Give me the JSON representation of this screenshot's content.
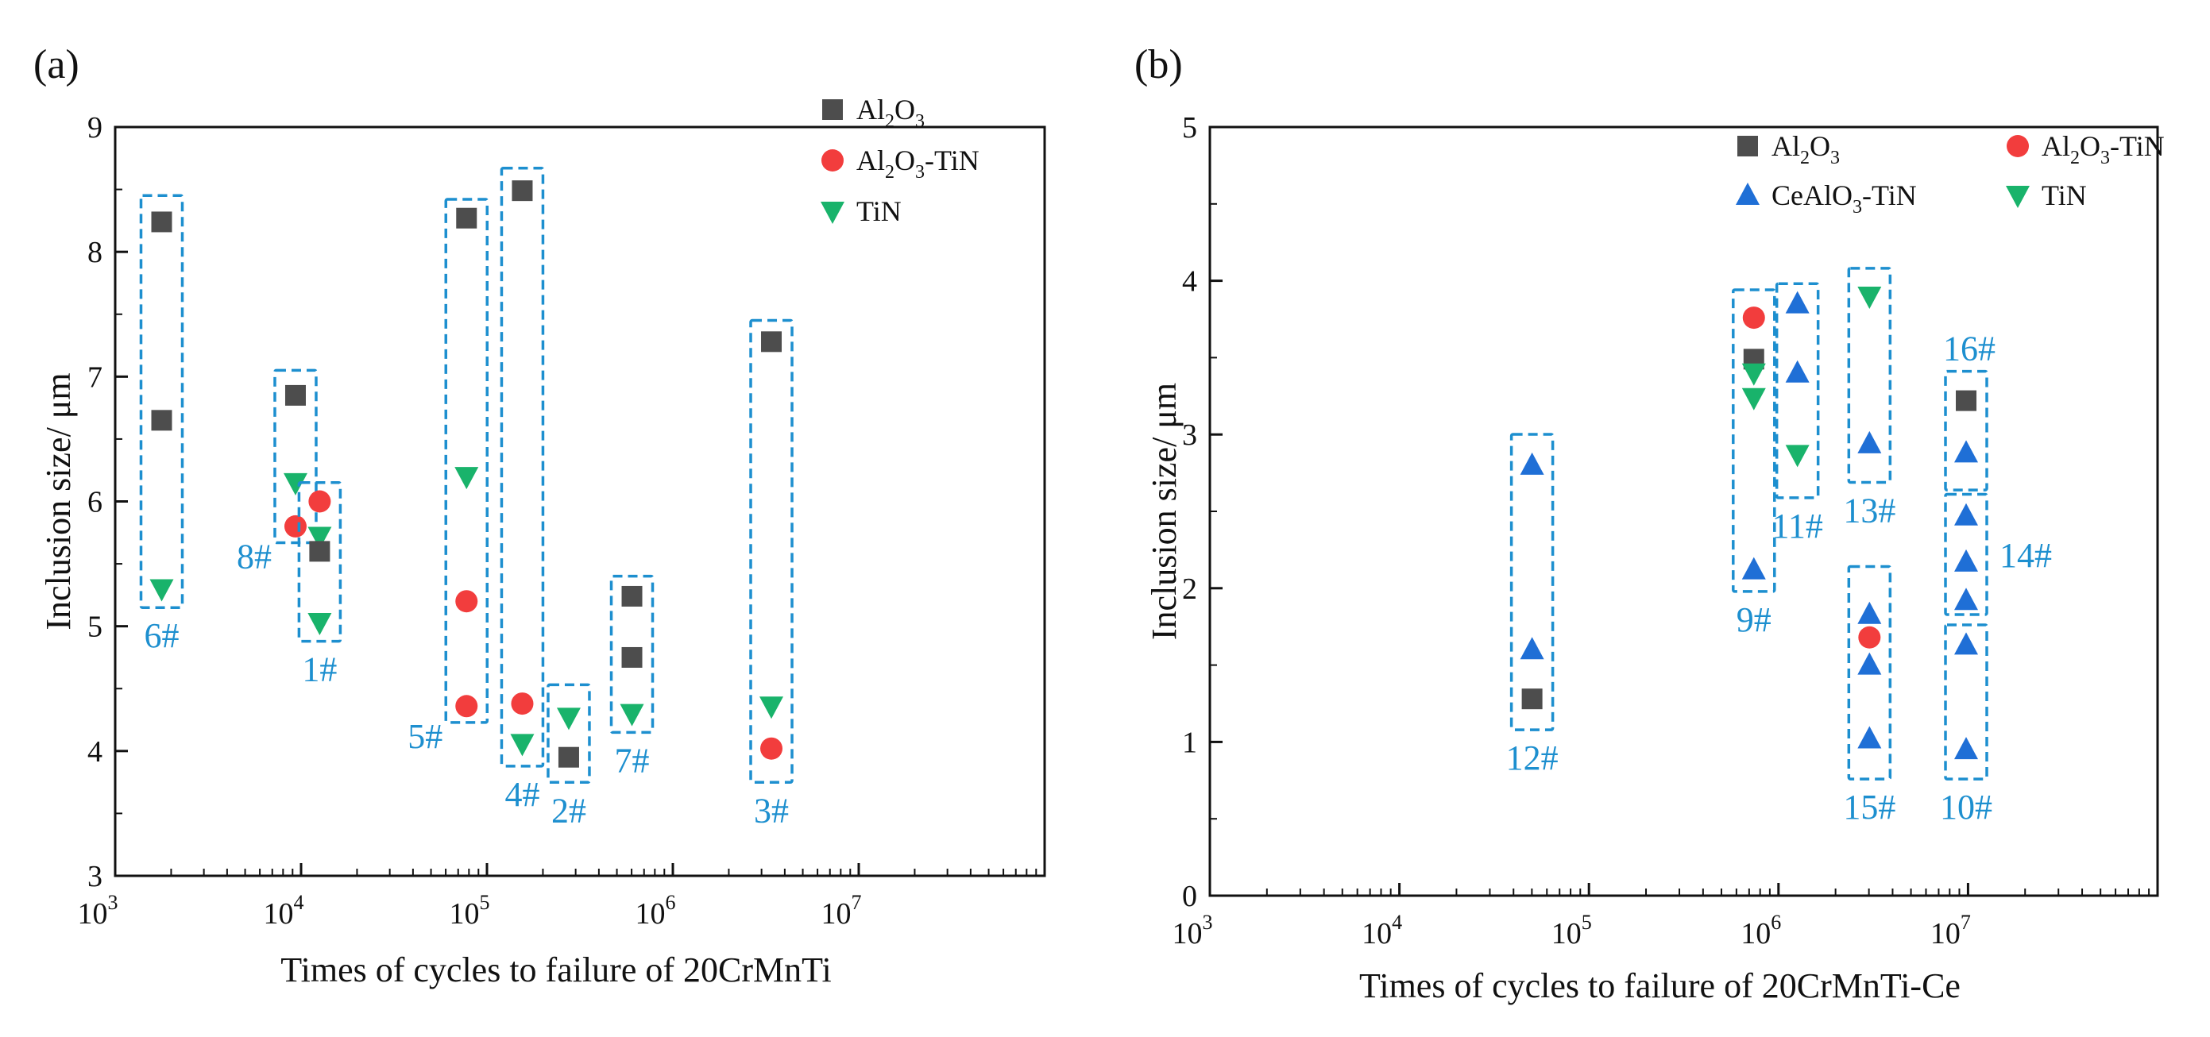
{
  "chart_data": [
    {
      "type": "scatter",
      "panel": "(a)",
      "xlabel": "Times of cycles to failure of 20CrMnTi",
      "ylabel": "Inclusion size/ μm",
      "xscale": "log",
      "xlim_exp": [
        3,
        8
      ],
      "xticks": [
        {
          "base": "10",
          "exp": "3"
        },
        {
          "base": "10",
          "exp": "4"
        },
        {
          "base": "10",
          "exp": "5"
        },
        {
          "base": "10",
          "exp": "6"
        },
        {
          "base": "10",
          "exp": "7"
        }
      ],
      "ylim": [
        3,
        9
      ],
      "yticks": [
        "3",
        "4",
        "5",
        "6",
        "7",
        "8",
        "9"
      ],
      "legend_position": "top-right",
      "legend": [
        {
          "key": "Al2O3",
          "base": "Al",
          "sub1": "2",
          "mid": "O",
          "sub2": "3",
          "tail": "",
          "marker": "square",
          "color": "#4d4d4d"
        },
        {
          "key": "Al2O3-TiN",
          "base": "Al",
          "sub1": "2",
          "mid": "O",
          "sub2": "3",
          "tail": "-TiN",
          "marker": "circle",
          "color": "#f23d3d"
        },
        {
          "key": "TiN",
          "base": "TiN",
          "sub1": "",
          "mid": "",
          "sub2": "",
          "tail": "",
          "marker": "triangle-down",
          "color": "#19b36b"
        }
      ],
      "groups": [
        {
          "label": "6#",
          "log_x": 3.25,
          "y_range": [
            5.2,
            8.4
          ],
          "label_pos": "below",
          "points": [
            {
              "series": "Al2O3",
              "y": 8.24
            },
            {
              "series": "Al2O3",
              "y": 6.65
            },
            {
              "series": "TiN",
              "y": 5.3
            }
          ]
        },
        {
          "label": "8#",
          "log_x": 3.97,
          "y_range": [
            5.72,
            7.0
          ],
          "label_pos": "below-left",
          "points": [
            {
              "series": "Al2O3",
              "y": 6.85
            },
            {
              "series": "TiN",
              "y": 6.15
            },
            {
              "series": "Al2O3-TiN",
              "y": 5.8
            }
          ]
        },
        {
          "label": "1#",
          "log_x": 4.1,
          "y_range": [
            4.93,
            6.1
          ],
          "label_pos": "below",
          "points": [
            {
              "series": "Al2O3-TiN",
              "y": 6.0
            },
            {
              "series": "TiN",
              "y": 5.72
            },
            {
              "series": "Al2O3",
              "y": 5.6
            },
            {
              "series": "TiN",
              "y": 5.03
            }
          ]
        },
        {
          "label": "5#",
          "log_x": 4.89,
          "y_range": [
            4.28,
            8.37
          ],
          "label_pos": "below-left",
          "points": [
            {
              "series": "Al2O3",
              "y": 8.27
            },
            {
              "series": "TiN",
              "y": 6.2
            },
            {
              "series": "Al2O3-TiN",
              "y": 5.2
            },
            {
              "series": "Al2O3-TiN",
              "y": 4.36
            }
          ]
        },
        {
          "label": "4#",
          "log_x": 5.19,
          "y_range": [
            3.93,
            8.62
          ],
          "label_pos": "below",
          "points": [
            {
              "series": "Al2O3",
              "y": 8.49
            },
            {
              "series": "Al2O3-TiN",
              "y": 4.38
            },
            {
              "series": "TiN",
              "y": 4.06
            }
          ]
        },
        {
          "label": "2#",
          "log_x": 5.44,
          "y_range": [
            3.8,
            4.48
          ],
          "label_pos": "below",
          "points": [
            {
              "series": "TiN",
              "y": 4.27
            },
            {
              "series": "Al2O3",
              "y": 3.95
            }
          ]
        },
        {
          "label": "7#",
          "log_x": 5.78,
          "y_range": [
            4.2,
            5.35
          ],
          "label_pos": "below",
          "points": [
            {
              "series": "Al2O3",
              "y": 5.24
            },
            {
              "series": "Al2O3",
              "y": 4.75
            },
            {
              "series": "TiN",
              "y": 4.3
            }
          ]
        },
        {
          "label": "3#",
          "log_x": 6.53,
          "y_range": [
            3.8,
            7.4
          ],
          "label_pos": "below",
          "points": [
            {
              "series": "Al2O3",
              "y": 7.28
            },
            {
              "series": "TiN",
              "y": 4.36
            },
            {
              "series": "Al2O3-TiN",
              "y": 4.02
            }
          ]
        }
      ]
    },
    {
      "type": "scatter",
      "panel": "(b)",
      "xlabel": "Times of cycles to failure of 20CrMnTi-Ce",
      "ylabel": "Inclusion size/ μm",
      "xscale": "log",
      "xlim_exp": [
        3,
        8
      ],
      "xticks": [
        {
          "base": "10",
          "exp": "3"
        },
        {
          "base": "10",
          "exp": "4"
        },
        {
          "base": "10",
          "exp": "5"
        },
        {
          "base": "10",
          "exp": "6"
        },
        {
          "base": "10",
          "exp": "7"
        }
      ],
      "ylim": [
        0,
        5
      ],
      "yticks": [
        "0",
        "1",
        "2",
        "3",
        "4",
        "5"
      ],
      "legend_position": "top-right",
      "legend": [
        {
          "key": "Al2O3",
          "base": "Al",
          "sub1": "2",
          "mid": "O",
          "sub2": "3",
          "tail": "",
          "marker": "square",
          "color": "#4d4d4d"
        },
        {
          "key": "Al2O3-TiN",
          "base": "Al",
          "sub1": "2",
          "mid": "O",
          "sub2": "3",
          "tail": "-TiN",
          "marker": "circle",
          "color": "#f23d3d"
        },
        {
          "key": "CeAlO3-TiN",
          "base": "CeAlO",
          "sub1": "",
          "mid": "",
          "sub2": "3",
          "tail": "-TiN",
          "marker": "triangle-up",
          "color": "#1f6fd6"
        },
        {
          "key": "TiN",
          "base": "TiN",
          "sub1": "",
          "mid": "",
          "sub2": "",
          "tail": "",
          "marker": "triangle-down",
          "color": "#19b36b"
        }
      ],
      "groups": [
        {
          "label": "12#",
          "log_x": 4.7,
          "y_range": [
            1.12,
            2.96
          ],
          "label_pos": "below",
          "points": [
            {
              "series": "CeAlO3-TiN",
              "y": 2.8
            },
            {
              "series": "CeAlO3-TiN",
              "y": 1.6
            },
            {
              "series": "Al2O3",
              "y": 1.28
            }
          ]
        },
        {
          "label": "9#",
          "log_x": 5.87,
          "y_range": [
            2.02,
            3.9
          ],
          "label_pos": "below",
          "points": [
            {
              "series": "Al2O3-TiN",
              "y": 3.76
            },
            {
              "series": "Al2O3",
              "y": 3.49
            },
            {
              "series": "TiN",
              "y": 3.4
            },
            {
              "series": "TiN",
              "y": 3.24
            },
            {
              "series": "CeAlO3-TiN",
              "y": 2.12
            }
          ]
        },
        {
          "label": "11#",
          "log_x": 6.1,
          "y_range": [
            2.63,
            3.94
          ],
          "label_pos": "below",
          "points": [
            {
              "series": "CeAlO3-TiN",
              "y": 3.85
            },
            {
              "series": "CeAlO3-TiN",
              "y": 3.4
            },
            {
              "series": "TiN",
              "y": 2.87
            }
          ]
        },
        {
          "label": "13#",
          "log_x": 6.48,
          "y_range": [
            2.73,
            4.04
          ],
          "label_pos": "below",
          "points": [
            {
              "series": "TiN",
              "y": 3.9
            },
            {
              "series": "CeAlO3-TiN",
              "y": 2.94
            }
          ]
        },
        {
          "label": "15#",
          "log_x": 6.48,
          "y_range": [
            0.8,
            2.1
          ],
          "label_pos": "below",
          "points": [
            {
              "series": "CeAlO3-TiN",
              "y": 1.83
            },
            {
              "series": "Al2O3-TiN",
              "y": 1.68
            },
            {
              "series": "CeAlO3-TiN",
              "y": 1.5
            },
            {
              "series": "CeAlO3-TiN",
              "y": 1.02
            }
          ]
        },
        {
          "label": "16#",
          "log_x": 6.99,
          "y_range": [
            2.68,
            3.37
          ],
          "label_pos": "above",
          "points": [
            {
              "series": "Al2O3",
              "y": 3.22
            },
            {
              "series": "CeAlO3-TiN",
              "y": 2.88
            }
          ]
        },
        {
          "label": "14#",
          "log_x": 6.99,
          "y_range": [
            1.87,
            2.57
          ],
          "label_pos": "right",
          "points": [
            {
              "series": "CeAlO3-TiN",
              "y": 2.47
            },
            {
              "series": "CeAlO3-TiN",
              "y": 2.17
            },
            {
              "series": "CeAlO3-TiN",
              "y": 1.92
            }
          ]
        },
        {
          "label": "10#",
          "log_x": 6.99,
          "y_range": [
            0.8,
            1.72
          ],
          "label_pos": "below",
          "points": [
            {
              "series": "CeAlO3-TiN",
              "y": 1.63
            },
            {
              "series": "CeAlO3-TiN",
              "y": 0.95
            }
          ]
        }
      ]
    }
  ]
}
